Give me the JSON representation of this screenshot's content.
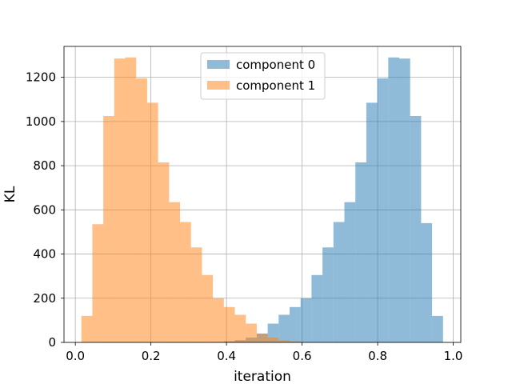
{
  "chart_data": {
    "type": "bar",
    "xlabel": "iteration",
    "ylabel": "KL",
    "xlim": [
      -0.03,
      1.02
    ],
    "ylim": [
      0,
      1340
    ],
    "xticks": [
      0.0,
      0.2,
      0.4,
      0.6,
      0.8,
      1.0
    ],
    "xtick_labels": [
      "0.0",
      "0.2",
      "0.4",
      "0.6",
      "0.8",
      "1.0"
    ],
    "yticks": [
      0,
      200,
      400,
      600,
      800,
      1000,
      1200
    ],
    "ytick_labels": [
      "0",
      "200",
      "400",
      "600",
      "800",
      "1000",
      "1200"
    ],
    "grid": true,
    "legend_position": "top-center",
    "bin_edges": [
      0.016,
      0.045,
      0.074,
      0.103,
      0.132,
      0.161,
      0.19,
      0.219,
      0.248,
      0.277,
      0.306,
      0.335,
      0.364,
      0.393,
      0.422,
      0.451,
      0.48,
      0.509,
      0.538,
      0.567,
      0.596,
      0.625,
      0.654,
      0.683,
      0.712,
      0.741,
      0.77,
      0.799,
      0.828,
      0.857,
      0.886,
      0.915,
      0.944,
      0.973
    ],
    "series": [
      {
        "name": "component 0",
        "color": "#1f77b4",
        "opacity": 0.5,
        "counts": [
          0,
          0,
          0,
          0,
          0,
          0,
          0,
          0,
          0,
          0,
          0,
          0,
          2,
          5,
          10,
          22,
          40,
          85,
          125,
          160,
          200,
          305,
          430,
          545,
          635,
          815,
          1085,
          1195,
          1290,
          1285,
          1025,
          540,
          120
        ]
      },
      {
        "name": "component 1",
        "color": "#ff7f0e",
        "opacity": 0.5,
        "counts": [
          120,
          535,
          1025,
          1285,
          1290,
          1195,
          1085,
          815,
          635,
          545,
          430,
          305,
          200,
          160,
          125,
          85,
          40,
          22,
          10,
          5,
          2,
          0,
          0,
          0,
          0,
          0,
          0,
          0,
          0,
          0,
          0,
          0,
          0
        ]
      }
    ]
  }
}
